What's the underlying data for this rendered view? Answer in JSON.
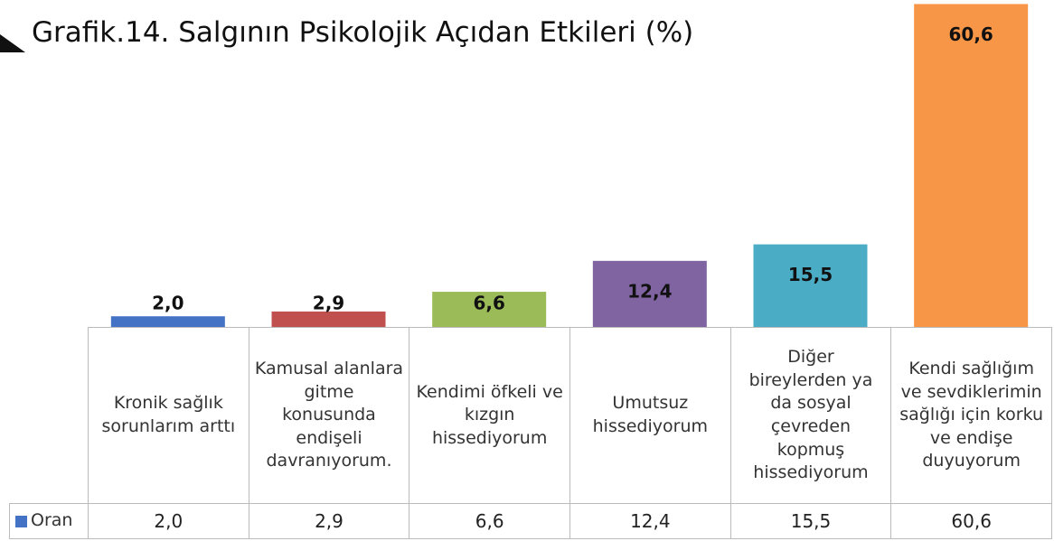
{
  "chart_data": {
    "type": "bar",
    "title": "Grafik.14. Salgının Psikolojik Açıdan Etkileri (%)",
    "categories": [
      "Kronik sağlık sorunlarım arttı",
      "Kamusal alanlara gitme konusunda endişeli davranıyorum.",
      "Kendimi öfkeli ve kızgın hissediyorum",
      "Umutsuz hissediyorum",
      "Diğer bireylerden ya da sosyal çevreden kopmuş hissediyorum",
      "Kendi sağlığım ve sevdiklerimin sağlığı için korku ve endişe duyuyorum"
    ],
    "series": [
      {
        "name": "Oran",
        "color": "#4472c4",
        "colors": [
          "#4472c4",
          "#c0504d",
          "#9bbb59",
          "#8064a2",
          "#4bacc6",
          "#f79646"
        ],
        "values": [
          2.0,
          2.9,
          6.6,
          12.4,
          15.5,
          60.6
        ],
        "value_labels": [
          "2,0",
          "2,9",
          "6,6",
          "12,4",
          "15,5",
          "60,6"
        ]
      }
    ]
  }
}
